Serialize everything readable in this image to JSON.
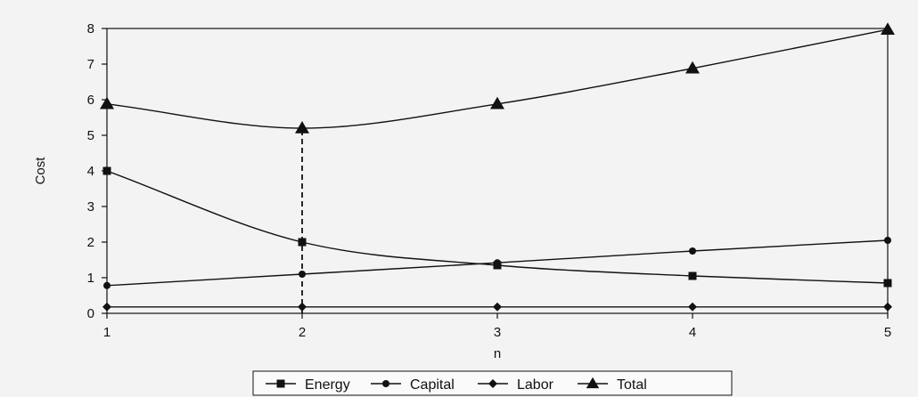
{
  "chart_data": {
    "type": "line",
    "title": "",
    "xlabel": "n",
    "ylabel": "Cost",
    "x": [
      1,
      2,
      3,
      4,
      5
    ],
    "xlim": [
      1,
      5
    ],
    "ylim": [
      0,
      8
    ],
    "xticks": [
      "1",
      "2",
      "3",
      "4",
      "5"
    ],
    "yticks": [
      "0",
      "1",
      "2",
      "3",
      "4",
      "5",
      "6",
      "7",
      "8"
    ],
    "grid": false,
    "legend_position": "bottom",
    "series": [
      {
        "name": "Energy",
        "marker": "square",
        "values": [
          4.0,
          2.0,
          1.35,
          1.05,
          0.85
        ]
      },
      {
        "name": "Capital",
        "marker": "circle",
        "values": [
          0.78,
          1.1,
          1.42,
          1.75,
          2.05
        ]
      },
      {
        "name": "Labor",
        "marker": "diamond",
        "values": [
          0.18,
          0.18,
          0.18,
          0.18,
          0.18
        ]
      },
      {
        "name": "Total",
        "marker": "triangle",
        "values": [
          5.88,
          5.2,
          5.88,
          6.88,
          7.97
        ]
      }
    ],
    "annotations": [
      {
        "type": "dashed-vertical-line",
        "x": 2,
        "y_from": 0,
        "y_to": 5.2
      }
    ],
    "color": "#111111"
  }
}
